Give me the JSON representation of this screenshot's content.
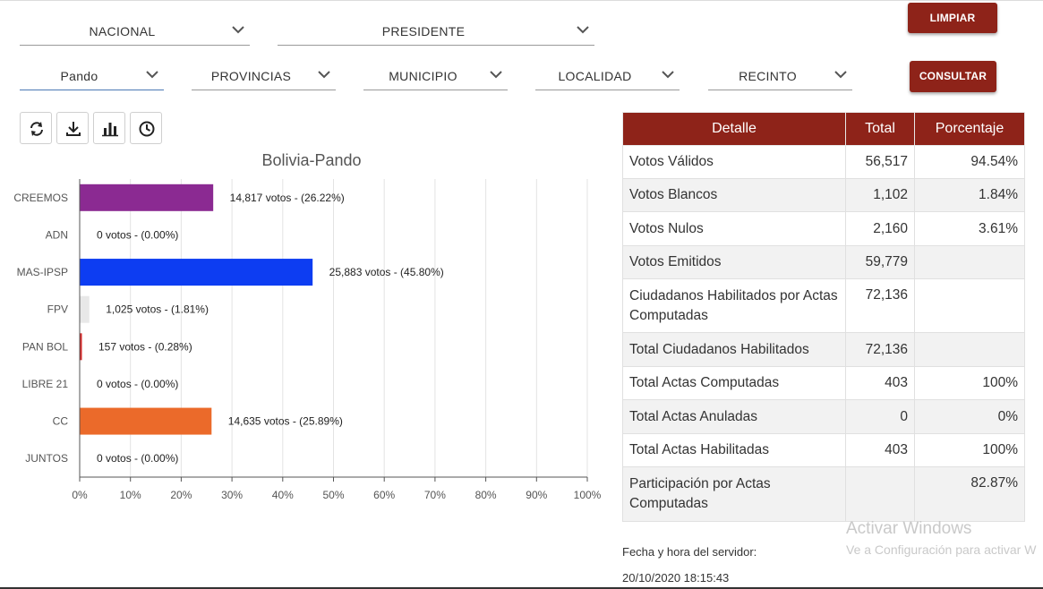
{
  "filters": {
    "row1": [
      {
        "value": "NACIONAL"
      },
      {
        "value": "PRESIDENTE"
      }
    ],
    "row2": [
      {
        "value": "Pando"
      },
      {
        "value": "PROVINCIAS"
      },
      {
        "value": "MUNICIPIO"
      },
      {
        "value": "LOCALIDAD"
      },
      {
        "value": "RECINTO"
      }
    ]
  },
  "buttons": {
    "clear_label": "LIMPIAR",
    "query_label": "CONSULTAR"
  },
  "toolbar": {
    "icons": [
      "refresh-icon",
      "download-icon",
      "bar-chart-icon",
      "clock-icon"
    ]
  },
  "colors": {
    "brand": "#8e2319"
  },
  "chart_data": {
    "type": "bar",
    "orientation": "horizontal",
    "title": "Bolivia-Pando",
    "categories": [
      "CREEMOS",
      "ADN",
      "MAS-IPSP",
      "FPV",
      "PAN BOL",
      "LIBRE 21",
      "CC",
      "JUNTOS"
    ],
    "values": [
      26.22,
      0.0,
      45.8,
      1.81,
      0.28,
      0.0,
      25.89,
      0.0
    ],
    "votes": [
      "14,817",
      "0",
      "25,883",
      "1,025",
      "157",
      "0",
      "14,635",
      "0"
    ],
    "labels": [
      "14,817 votos - (26.22%)",
      "0 votos - (0.00%)",
      "25,883 votos - (45.80%)",
      "1,025 votos - (1.81%)",
      "157 votos - (0.28%)",
      "0 votos - (0.00%)",
      "14,635 votos - (25.89%)",
      "0 votos - (0.00%)"
    ],
    "colors": [
      "#8b2a92",
      "#f0f0f0",
      "#0d3df2",
      "#e8e8e8",
      "#d42a2a",
      "#f0f0f0",
      "#eb6a2a",
      "#f0f0f0"
    ],
    "xlim": [
      0,
      100
    ],
    "x_ticks": [
      "0%",
      "10%",
      "20%",
      "30%",
      "40%",
      "50%",
      "60%",
      "70%",
      "80%",
      "90%",
      "100%"
    ],
    "grid": true
  },
  "details": {
    "headers": [
      "Detalle",
      "Total",
      "Porcentaje"
    ],
    "rows": [
      {
        "label": "Votos Válidos",
        "total": "56,517",
        "pct": "94.54%"
      },
      {
        "label": "Votos Blancos",
        "total": "1,102",
        "pct": "1.84%"
      },
      {
        "label": "Votos Nulos",
        "total": "2,160",
        "pct": "3.61%"
      },
      {
        "label": "Votos Emitidos",
        "total": "59,779",
        "pct": ""
      },
      {
        "label": "Ciudadanos Habilitados por Actas Computadas",
        "total": "72,136",
        "pct": ""
      },
      {
        "label": "Total Ciudadanos Habilitados",
        "total": "72,136",
        "pct": ""
      },
      {
        "label": "Total Actas Computadas",
        "total": "403",
        "pct": "100%"
      },
      {
        "label": "Total Actas Anuladas",
        "total": "0",
        "pct": "0%"
      },
      {
        "label": "Total Actas Habilitadas",
        "total": "403",
        "pct": "100%"
      },
      {
        "label": "Participación por Actas Computadas",
        "total": "",
        "pct": "82.87%"
      }
    ]
  },
  "server": {
    "label": "Fecha y hora del servidor:",
    "datetime": "20/10/2020 18:15:43"
  },
  "watermark": {
    "line1": "Activar Windows",
    "line2": "Ve a Configuración para activar W"
  }
}
